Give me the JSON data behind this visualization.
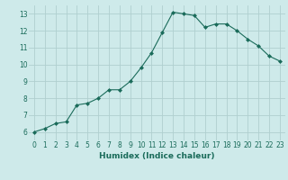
{
  "x": [
    0,
    1,
    2,
    3,
    4,
    5,
    6,
    7,
    8,
    9,
    10,
    11,
    12,
    13,
    14,
    15,
    16,
    17,
    18,
    19,
    20,
    21,
    22,
    23
  ],
  "y": [
    6.0,
    6.2,
    6.5,
    6.6,
    7.6,
    7.7,
    8.0,
    8.5,
    8.5,
    9.0,
    9.8,
    10.7,
    11.9,
    13.1,
    13.0,
    12.9,
    12.2,
    12.4,
    12.4,
    12.0,
    11.5,
    11.1,
    10.5,
    10.2
  ],
  "xlabel": "Humidex (Indice chaleur)",
  "ylim": [
    5.5,
    13.5
  ],
  "xlim_min": -0.5,
  "xlim_max": 23.5,
  "yticks": [
    6,
    7,
    8,
    9,
    10,
    11,
    12,
    13
  ],
  "xticks": [
    0,
    1,
    2,
    3,
    4,
    5,
    6,
    7,
    8,
    9,
    10,
    11,
    12,
    13,
    14,
    15,
    16,
    17,
    18,
    19,
    20,
    21,
    22,
    23
  ],
  "line_color": "#1a6b5a",
  "marker": "D",
  "marker_size": 2,
  "bg_color": "#ceeaea",
  "grid_color": "#b0cfcf",
  "tick_label_fontsize": 5.5,
  "xlabel_fontsize": 6.5
}
